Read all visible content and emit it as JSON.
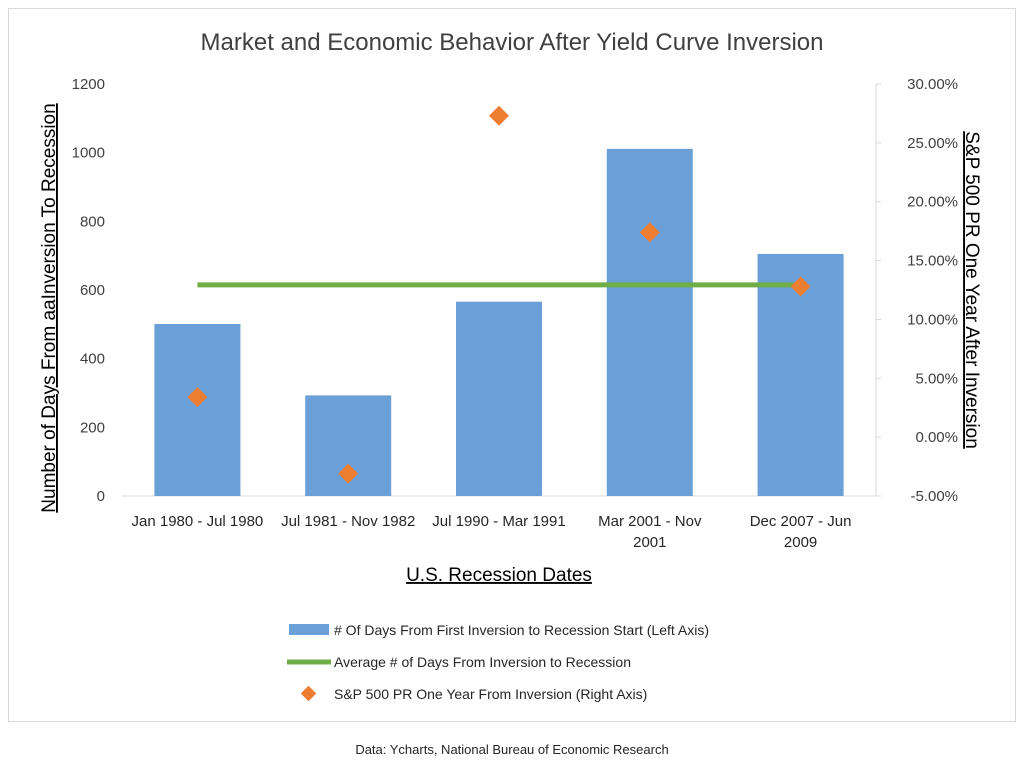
{
  "chart_data": {
    "type": "bar",
    "title": "Market and Economic Behavior After Yield Curve Inversion",
    "xlabel": "U.S. Recession Dates",
    "ylabel_left": "Number of Days From aaInversion To Recession",
    "ylabel_right": "S&P 500 PR One Year After Inversion",
    "categories": [
      [
        "Jan 1980 - Jul 1980"
      ],
      [
        "Jul 1981 - Nov 1982"
      ],
      [
        "Jul 1990 - Mar 1991"
      ],
      [
        "Mar 2001 - Nov",
        "2001"
      ],
      [
        "Dec 2007 - Jun",
        "2009"
      ]
    ],
    "ylim_left": [
      0,
      1200
    ],
    "yticks_left": [
      "0",
      "200",
      "400",
      "600",
      "800",
      "1000",
      "1200"
    ],
    "ylim_right": [
      -0.05,
      0.3
    ],
    "yticks_right": [
      "-5.00%",
      "0.00%",
      "5.00%",
      "10.00%",
      "15.00%",
      "20.00%",
      "25.00%",
      "30.00%"
    ],
    "grid": false,
    "legend_position": "bottom",
    "series": [
      {
        "name": "# Of Days From First Inversion to Recession Start (Left Axis)",
        "type": "bar",
        "axis": "left",
        "color": "#6a9fd8",
        "values": [
          501,
          293,
          566,
          1011,
          705
        ]
      },
      {
        "name": "Average # of Days From Inversion to Recession",
        "type": "line",
        "axis": "left",
        "color": "#70ad47",
        "values": [
          615,
          615,
          615,
          615,
          615
        ]
      },
      {
        "name": "S&P 500 PR One Year From Inversion (Right Axis)",
        "type": "scatter",
        "axis": "right",
        "color": "#ed7d31",
        "values": [
          0.034,
          -0.031,
          0.273,
          0.174,
          0.128
        ]
      }
    ]
  },
  "source_note": "Data: Ycharts, National Bureau of Economic Research"
}
